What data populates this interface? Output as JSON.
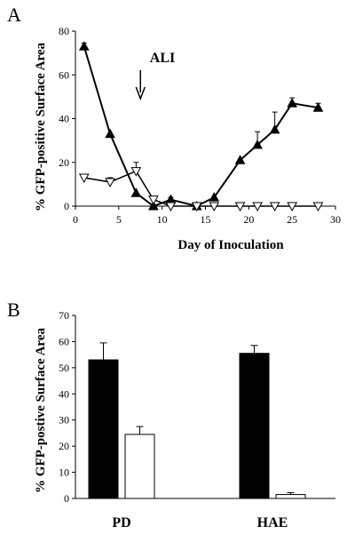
{
  "colors": {
    "ink": "#000000",
    "open_fill": "#ffffff",
    "solid_fill": "#000000"
  },
  "chart_data": [
    {
      "type": "line",
      "panel_label": "A",
      "xlabel": "Day of Inoculation",
      "ylabel": "% GFP-positive Surface Area",
      "xlim": [
        0,
        30
      ],
      "ylim": [
        0,
        80
      ],
      "xticks": [
        "0",
        "5",
        "10",
        "15",
        "20",
        "25",
        "30"
      ],
      "yticks": [
        "0",
        "20",
        "40",
        "60",
        "80"
      ],
      "annotation": {
        "text": "ALI",
        "x": 7.5
      },
      "series": [
        {
          "marker": "filled-triangle-up",
          "x": [
            1,
            4,
            7,
            9,
            11,
            14,
            16,
            19,
            21,
            23,
            25,
            28
          ],
          "y": [
            73,
            33,
            6,
            0,
            3,
            0,
            4,
            21,
            28,
            35,
            47,
            45
          ],
          "err": [
            1.5,
            0,
            0,
            0,
            1,
            0,
            0,
            0,
            6,
            8,
            2.5,
            2
          ]
        },
        {
          "marker": "open-triangle-down",
          "x": [
            1,
            4,
            7,
            9,
            11,
            14,
            16,
            19,
            21,
            23,
            25,
            28
          ],
          "y": [
            13,
            11,
            16,
            3,
            0,
            0,
            0,
            0,
            0,
            0,
            0,
            0
          ],
          "err": [
            0,
            2,
            4,
            0,
            0,
            0,
            0,
            0,
            0,
            0,
            0,
            0
          ]
        }
      ]
    },
    {
      "type": "bar",
      "panel_label": "B",
      "ylabel": "% GFP-postive Surface Area",
      "ylim": [
        0,
        70
      ],
      "yticks": [
        "0",
        "10",
        "20",
        "30",
        "40",
        "50",
        "60",
        "70"
      ],
      "categories": [
        "PD",
        "HAE"
      ],
      "series": [
        {
          "fill": "black",
          "values": [
            53,
            55.5
          ],
          "err": [
            6.5,
            3
          ]
        },
        {
          "fill": "white",
          "values": [
            24.5,
            1.5
          ],
          "err": [
            3,
            0.7
          ]
        }
      ]
    }
  ]
}
